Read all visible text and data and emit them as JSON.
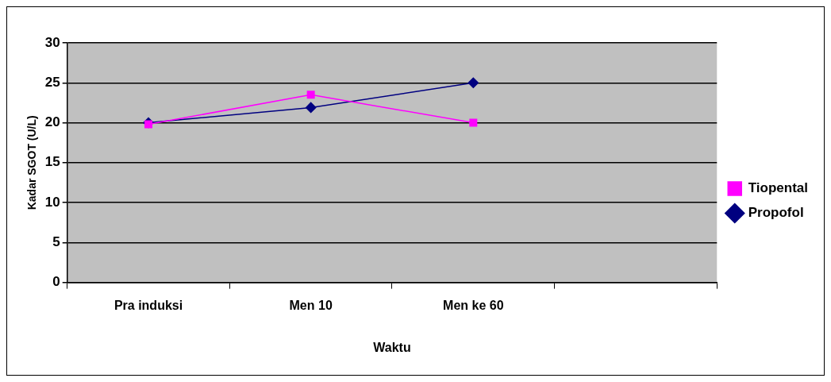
{
  "chart_data": {
    "type": "line",
    "xlabel": "Waktu",
    "ylabel": "Kadar SGOT (U/L)",
    "categories": [
      "Pra induksi",
      "Men 10",
      "Men ke 60",
      null
    ],
    "series": [
      {
        "name": "Propofol",
        "color": "#000080",
        "marker": "diamond",
        "values": [
          20,
          21.9,
          25,
          null
        ]
      },
      {
        "name": "Tiopental",
        "color": "#ff00ff",
        "marker": "square",
        "values": [
          19.8,
          23.5,
          20,
          null
        ]
      }
    ],
    "ylim": [
      0,
      30
    ],
    "yticks": [
      0,
      5,
      10,
      15,
      20,
      25,
      30
    ],
    "grid": "y",
    "legend": "right"
  }
}
